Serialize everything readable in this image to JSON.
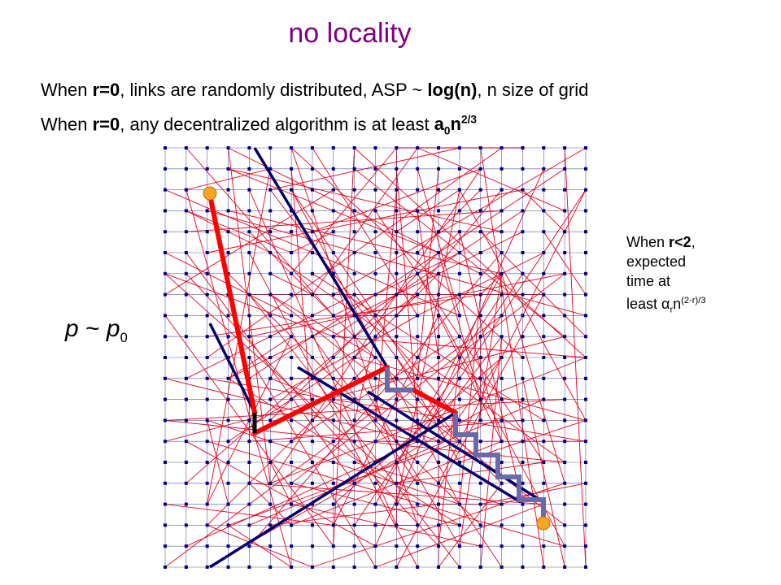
{
  "title": "no locality",
  "line1": {
    "pre": "When ",
    "b1": "r=0",
    "mid": ", links are randomly distributed, ASP ~ ",
    "b2": "log(n)",
    "post": ", n size of grid"
  },
  "line2": {
    "pre": "When ",
    "b1": "r=0",
    "mid": ", any decentralized algorithm is at least ",
    "base": "a",
    "sub": "0",
    "n": "n",
    "exp": "2/3"
  },
  "side_note": {
    "l1_pre": "When ",
    "l1_b": "r<2",
    "l1_post": ",",
    "l2": "expected",
    "l3": "time at",
    "l4_pre": "least ",
    "alpha": "α",
    "alpha_sub": "r",
    "n": "n",
    "exp": "(2-r)/3"
  },
  "formula": {
    "p": "p",
    "tilde": " ~ ",
    "p0": "p",
    "sub": "0"
  },
  "colors": {
    "title": "#800080",
    "random_links": "#e8001c",
    "grid": "#1a1a6e",
    "node": "#000080",
    "path_red": "#ff0000",
    "path_navy": "#00006e",
    "path_steps": "#6a6aa8",
    "endpoint": "#f5a623"
  }
}
